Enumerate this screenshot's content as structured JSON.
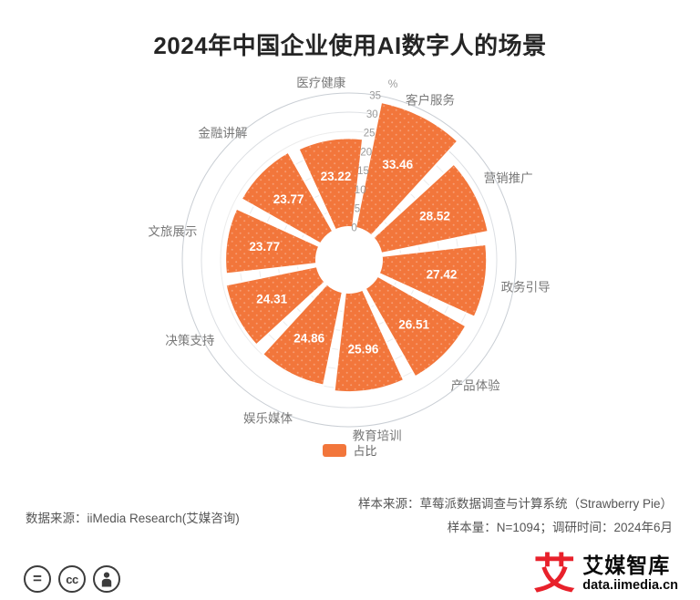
{
  "chart_data": {
    "type": "rose",
    "title": "2024年中国企业使用AI数字人的场景",
    "categories": [
      "医疗健康",
      "客户服务",
      "营销推广",
      "政务引导",
      "产品体验",
      "教育培训",
      "娱乐媒体",
      "决策支持",
      "文旅展示",
      "金融讲解"
    ],
    "series": [
      {
        "name": "占比",
        "values": [
          23.22,
          33.46,
          28.52,
          27.42,
          26.51,
          25.96,
          24.86,
          24.31,
          23.77,
          23.77
        ]
      }
    ],
    "radial_axis": {
      "min": 0,
      "max": 35,
      "ticks": [
        0,
        5,
        10,
        15,
        20,
        25,
        30,
        35
      ],
      "unit": "%"
    },
    "legend": {
      "position": "bottom",
      "items": [
        "占比"
      ]
    },
    "colors": {
      "series": "#F2763B"
    },
    "value_labels": "inside",
    "grid": "polar-circles"
  },
  "sources": {
    "data_source": "数据来源：iiMedia Research(艾媒咨询)",
    "sample_source": "样本来源：草莓派数据调查与计算系统（Strawberry Pie）",
    "sample_info": "样本量：N=1094；调研时间：2024年6月"
  },
  "footer": {
    "license_icons": [
      {
        "name": "equals-icon",
        "glyph": "="
      },
      {
        "name": "cc-icon",
        "glyph": "cc"
      },
      {
        "name": "person-icon",
        "glyph": "person"
      }
    ],
    "logo_char": "艾",
    "brand_name": "艾媒智库",
    "brand_url": "data.iimedia.cn"
  }
}
